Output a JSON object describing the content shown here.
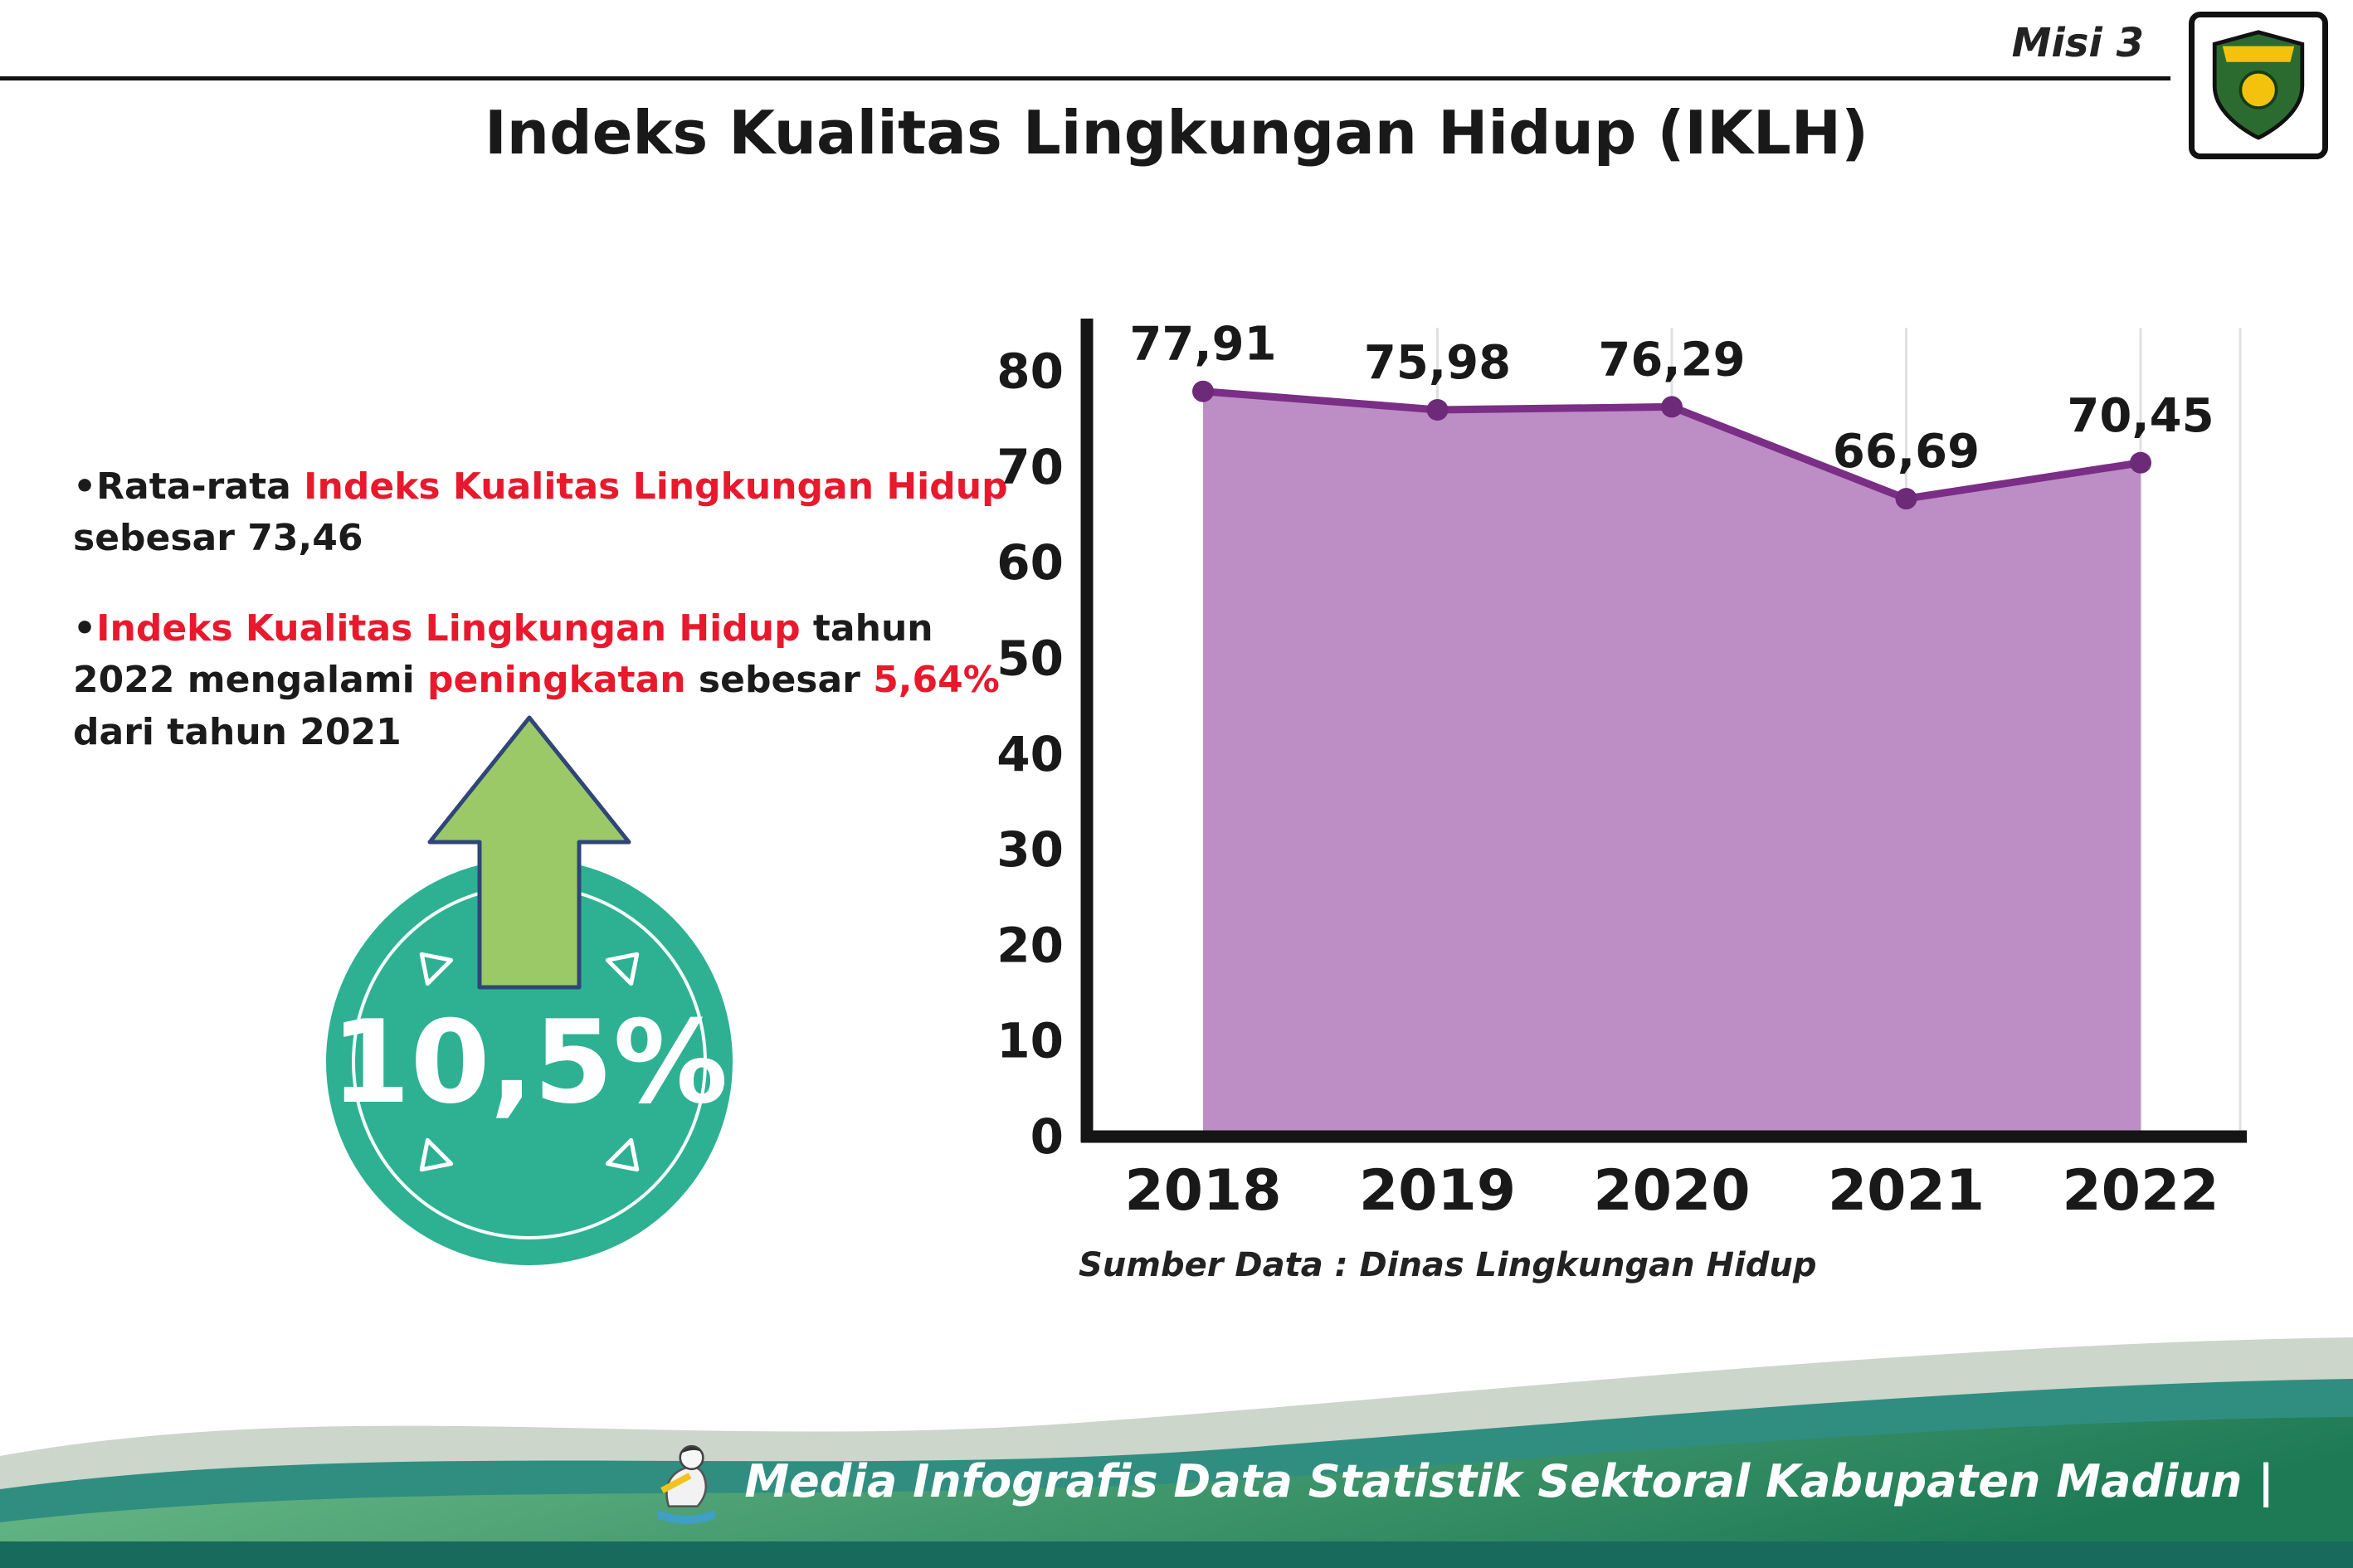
{
  "header": {
    "misi_label": "Misi 3",
    "title": "Indeks Kualitas Lingkungan Hidup (IKLH)",
    "logo_name": "kabupaten-madiun-logo"
  },
  "bullets": [
    {
      "segments": [
        {
          "t": "•Rata-rata ",
          "c": "dark"
        },
        {
          "t": "Indeks Kualitas Lingkungan Hidup",
          "c": "red"
        },
        {
          "t": " sebesar 73,46",
          "c": "dark"
        }
      ]
    },
    {
      "segments": [
        {
          "t": "•",
          "c": "dark"
        },
        {
          "t": "Indeks Kualitas Lingkungan Hidup",
          "c": "red"
        },
        {
          "t": " tahun 2022 mengalami ",
          "c": "dark"
        },
        {
          "t": "peningkatan",
          "c": "red"
        },
        {
          "t": " sebesar ",
          "c": "dark"
        },
        {
          "t": "5,64%",
          "c": "red"
        },
        {
          "t": " dari tahun 2021",
          "c": "dark"
        }
      ]
    }
  ],
  "badge": {
    "value": "10,5%"
  },
  "chart_data": {
    "type": "area",
    "categories": [
      "2018",
      "2019",
      "2020",
      "2021",
      "2022"
    ],
    "values": [
      77.91,
      75.98,
      76.29,
      66.69,
      70.45
    ],
    "value_labels": [
      "77,91",
      "75,98",
      "76,29",
      "66,69",
      "70,45"
    ],
    "ylim": [
      0,
      80
    ],
    "yticks": [
      0,
      10,
      20,
      30,
      40,
      50,
      60,
      70,
      80
    ],
    "grid": "vertical-light",
    "legend": "none",
    "fill_color": "#bd8ec6",
    "line_color": "#7b2e86",
    "dot_color": "#6d2a78",
    "source": "Sumber Data : Dinas Lingkungan Hidup"
  },
  "footer": {
    "text": "Media Infografis Data Statistik Sektoral Kabupaten Madiun |"
  },
  "colors": {
    "accent_red": "#e8192c",
    "badge_teal": "#2eb193",
    "arrow_green": "#9cc968",
    "line_purple": "#7b2e86",
    "fill_purple": "#bd8ec6"
  }
}
